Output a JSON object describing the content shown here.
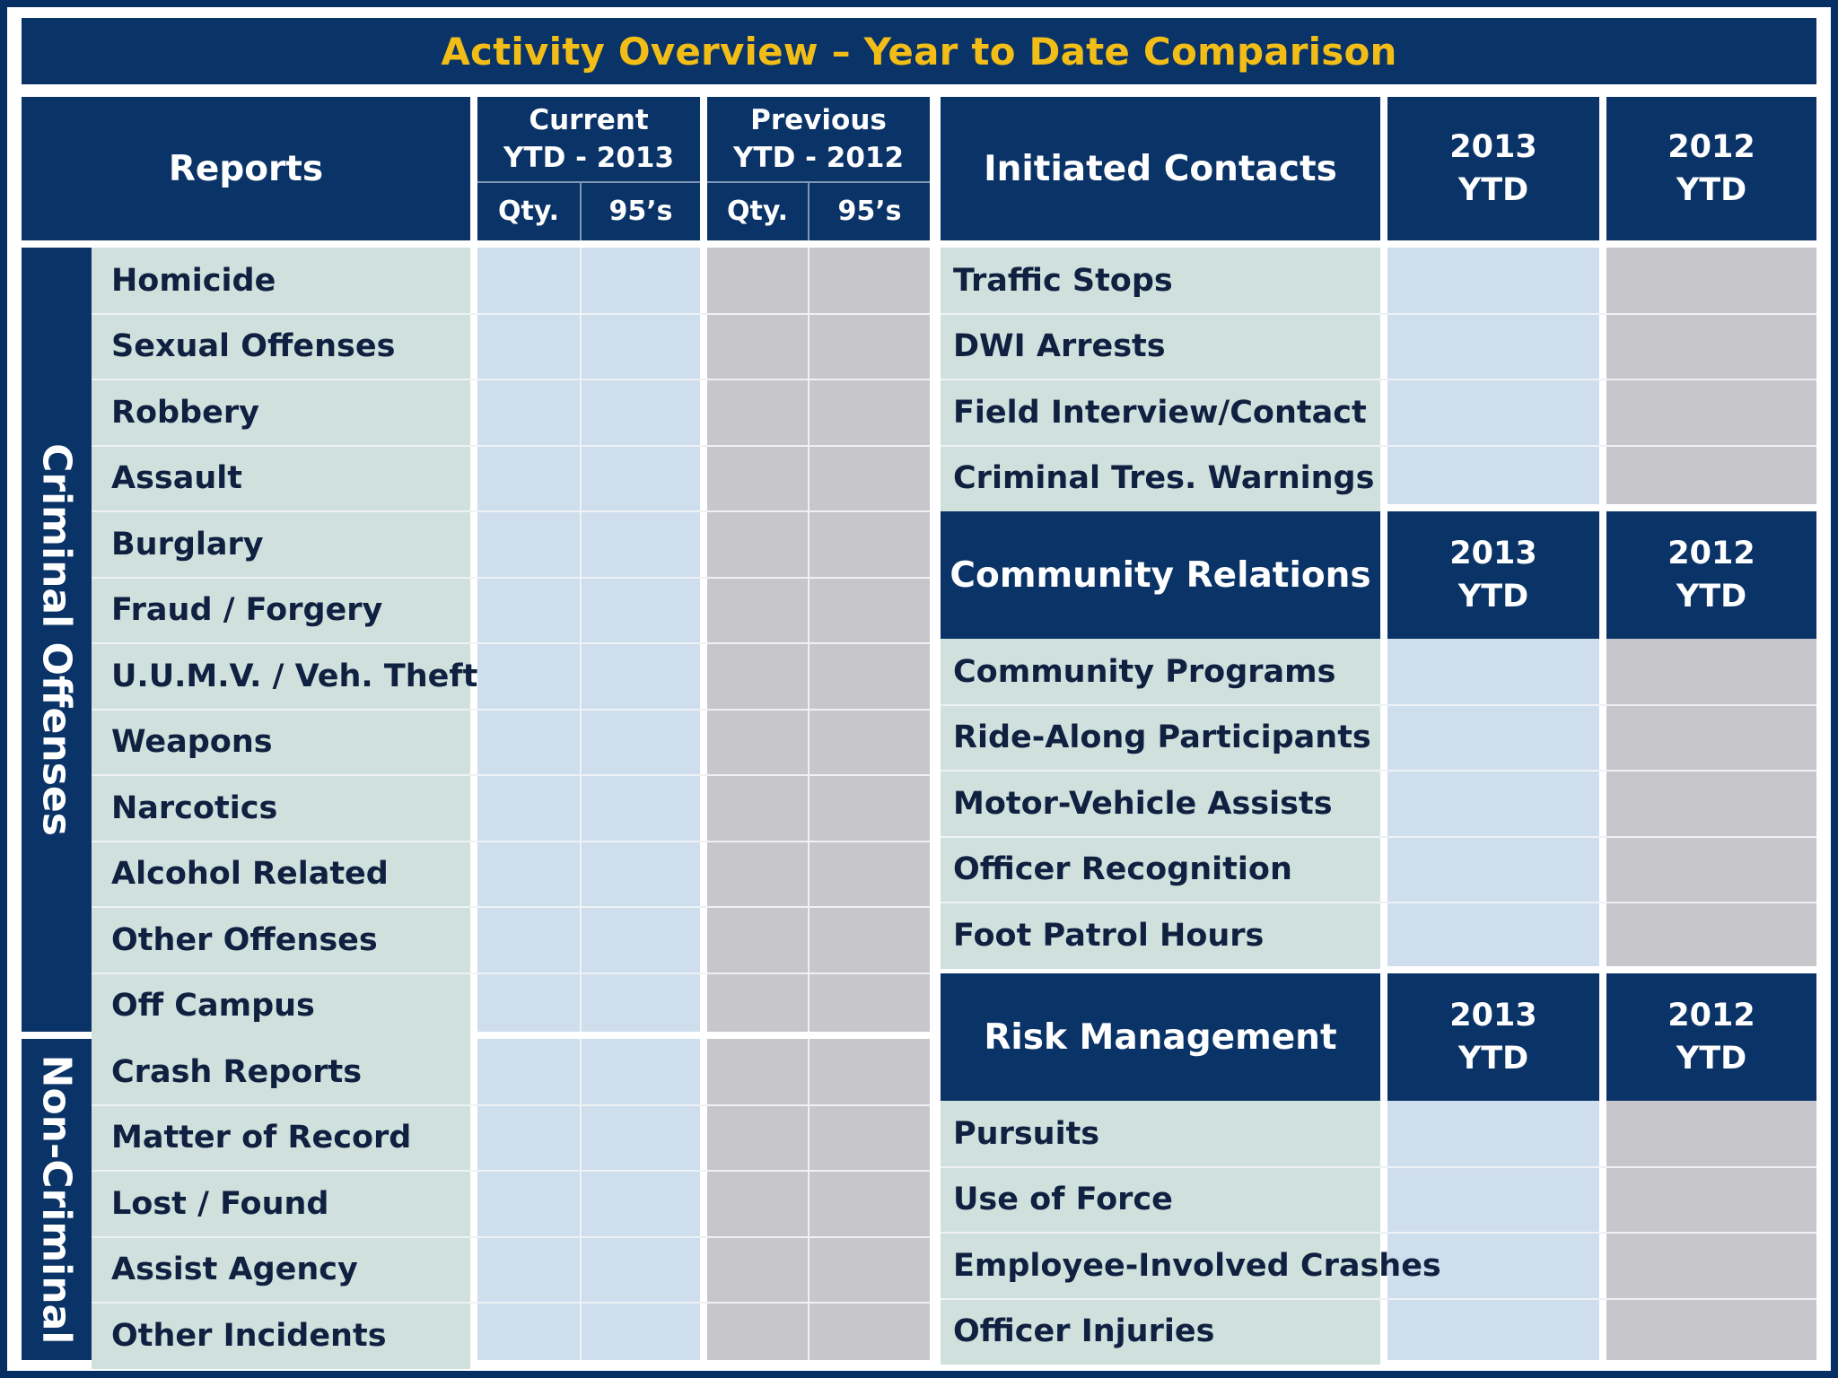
{
  "title": "Activity Overview – Year to Date Comparison",
  "reports": {
    "header": "Reports",
    "current_header": "Current\nYTD - 2013",
    "previous_header": "Previous\nYTD - 2012",
    "qty_label": "Qty.",
    "ninetyfive_label": "95’s",
    "criminal_group_label": "Criminal Offenses",
    "noncriminal_group_label": "Non-Criminal",
    "criminal_rows": [
      "Homicide",
      "Sexual Offenses",
      "Robbery",
      "Assault",
      "Burglary",
      "Fraud / Forgery",
      "U.U.M.V. / Veh. Theft",
      "Weapons",
      "Narcotics",
      "Alcohol Related",
      "Other Offenses",
      "Off Campus"
    ],
    "noncriminal_rows": [
      "Crash Reports",
      "Matter of Record",
      "Lost / Found",
      "Assist Agency",
      "Other Incidents"
    ]
  },
  "initiated_contacts": {
    "header": "Initiated Contacts",
    "col1": "2013\nYTD",
    "col2": "2012\nYTD",
    "rows": [
      "Traffic Stops",
      "DWI Arrests",
      "Field Interview/Contact",
      "Criminal Tres. Warnings"
    ]
  },
  "community_relations": {
    "header": "Community Relations",
    "col1": "2013\nYTD",
    "col2": "2012\nYTD",
    "rows": [
      "Community Programs",
      "Ride-Along Participants",
      "Motor-Vehicle Assists",
      "Officer Recognition",
      "Foot Patrol Hours"
    ]
  },
  "risk_management": {
    "header": "Risk Management",
    "col1": "2013\nYTD",
    "col2": "2012\nYTD",
    "rows": [
      "Pursuits",
      "Use of Force",
      "Employee-Involved Crashes",
      "Officer Injuries"
    ]
  },
  "colors": {
    "navy": "#0a3367",
    "gold": "#f2bd16",
    "label_bg": "#d0e0dd",
    "current_bg": "#cfdeec",
    "previous_bg": "#c7c6ca"
  }
}
